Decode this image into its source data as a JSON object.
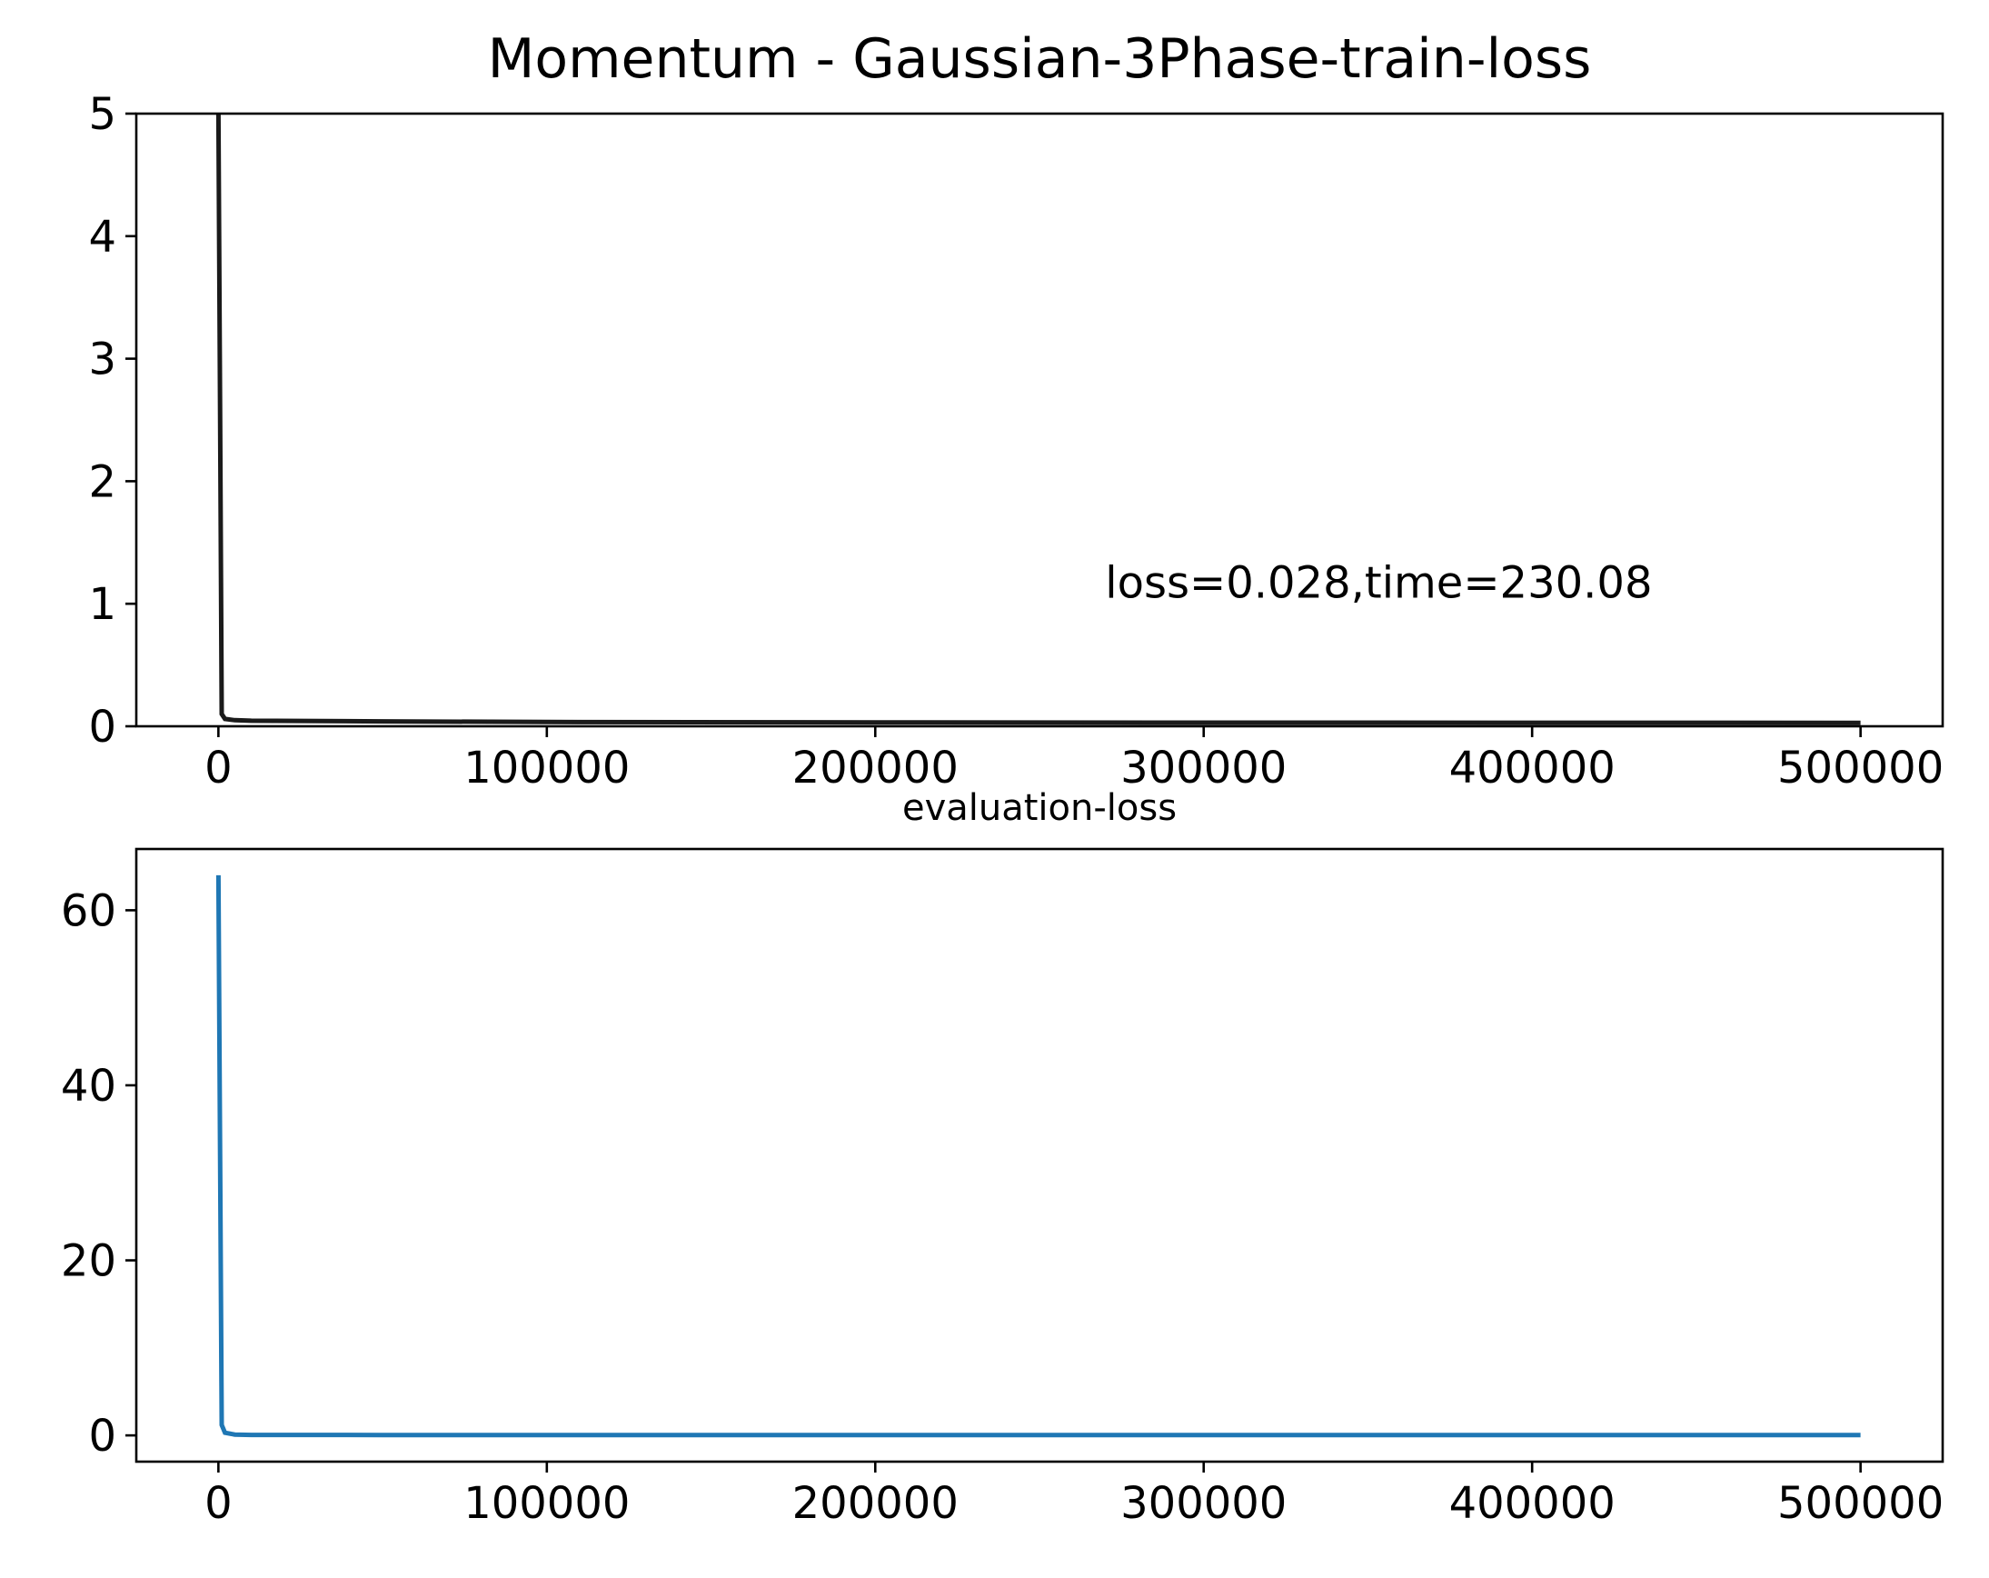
{
  "chart_data": [
    {
      "type": "line",
      "title": "Momentum - Gaussian-3Phase-train-loss",
      "xlabel": "",
      "ylabel": "",
      "xlim": [
        -25000,
        525000
      ],
      "ylim": [
        0,
        5
      ],
      "xticks": [
        0,
        100000,
        200000,
        300000,
        400000,
        500000
      ],
      "xtick_labels": [
        "0",
        "100000",
        "200000",
        "300000",
        "400000",
        "500000"
      ],
      "yticks": [
        0,
        1,
        2,
        3,
        4,
        5
      ],
      "ytick_labels": [
        "0",
        "1",
        "2",
        "3",
        "4",
        "5"
      ],
      "grid": false,
      "annotation": {
        "text": "loss=0.028,time=230.08",
        "x": 270000,
        "y": 1.05
      },
      "series": [
        {
          "color": "#1a1a1a",
          "x": [
            0,
            500,
            1000,
            2000,
            5000,
            10000,
            50000,
            100000,
            200000,
            300000,
            400000,
            500000
          ],
          "y": [
            5,
            2.6,
            0.1,
            0.06,
            0.05,
            0.045,
            0.04,
            0.035,
            0.032,
            0.03,
            0.029,
            0.028
          ]
        }
      ]
    },
    {
      "type": "line",
      "title": "evaluation-loss",
      "xlabel": "",
      "ylabel": "",
      "xlim": [
        -25000,
        525000
      ],
      "ylim": [
        -3,
        67
      ],
      "xticks": [
        0,
        100000,
        200000,
        300000,
        400000,
        500000
      ],
      "xtick_labels": [
        "0",
        "100000",
        "200000",
        "300000",
        "400000",
        "500000"
      ],
      "yticks": [
        0,
        20,
        40,
        60
      ],
      "ytick_labels": [
        "0",
        "20",
        "40",
        "60"
      ],
      "grid": false,
      "series": [
        {
          "color": "#1f77b4",
          "x": [
            0,
            1000,
            2000,
            5000,
            10000,
            50000,
            100000,
            200000,
            300000,
            400000,
            500000
          ],
          "y": [
            64,
            1.2,
            0.3,
            0.1,
            0.05,
            0.04,
            0.035,
            0.032,
            0.03,
            0.029,
            0.028
          ]
        }
      ]
    }
  ]
}
